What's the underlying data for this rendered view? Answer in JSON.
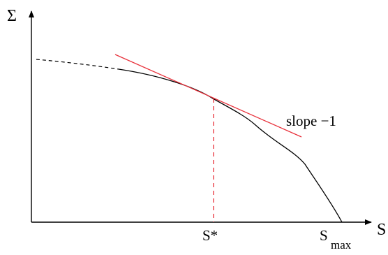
{
  "labels": {
    "y_axis": "Σ",
    "x_axis": "S",
    "s_star": "S*",
    "s_max_main": "S",
    "s_max_sub": "max",
    "slope": "slope −1"
  },
  "colors": {
    "axes": "#000000",
    "curve": "#000000",
    "tangent": "#e8303a",
    "dashed_vertical": "#e8303a"
  }
}
